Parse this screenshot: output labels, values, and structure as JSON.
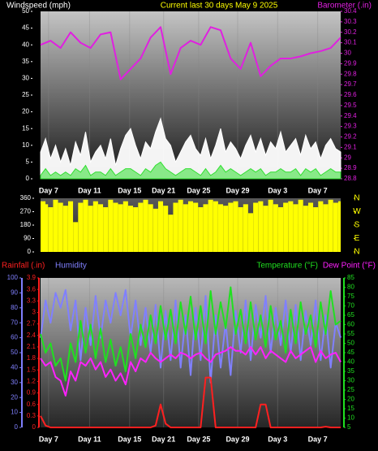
{
  "chart_data": [
    {
      "type": "line",
      "title": "Current last 30 days May 9 2025",
      "ylabel": "Windspeed (mph)",
      "y2label": "Barometer (.in)",
      "xlim": [
        0,
        30
      ],
      "xticks": [
        {
          "value": 0.8,
          "label": "Day 7"
        },
        {
          "value": 4.9,
          "label": "Day 11"
        },
        {
          "value": 8.9,
          "label": "Day 15"
        },
        {
          "value": 12.3,
          "label": "Day 21"
        },
        {
          "value": 15.8,
          "label": "Day 25"
        },
        {
          "value": 19.7,
          "label": "Day 29"
        },
        {
          "value": 23.7,
          "label": "Day 3"
        },
        {
          "value": 27.7,
          "label": "Day 7"
        }
      ],
      "grid": true,
      "ylim": [
        0,
        50
      ],
      "yticks": [
        0,
        5,
        10,
        15,
        20,
        25,
        30,
        35,
        40,
        45,
        50
      ],
      "y2lim": [
        28.8,
        30.4
      ],
      "y2ticks": [
        28.8,
        28.9,
        29,
        29.1,
        29.2,
        29.3,
        29.4,
        29.5,
        29.6,
        29.7,
        29.8,
        29.9,
        30,
        30.1,
        30.2,
        30.3,
        30.4
      ],
      "series": [
        {
          "style": "area",
          "color": "#ffffff",
          "x": [
            0,
            0.5,
            1,
            1.5,
            2,
            2.5,
            3,
            3.5,
            4,
            4.5,
            5,
            5.5,
            6,
            6.5,
            7,
            7.5,
            8,
            8.5,
            9,
            9.5,
            10,
            10.5,
            11,
            11.5,
            12,
            12.5,
            13,
            13.5,
            14,
            14.5,
            15,
            15.5,
            16,
            16.5,
            17,
            17.5,
            18,
            18.5,
            19,
            19.5,
            20,
            20.5,
            21,
            21.5,
            22,
            22.5,
            23,
            23.5,
            24,
            24.5,
            25,
            25.5,
            26,
            26.5,
            27,
            27.5,
            28,
            28.5,
            29,
            29.5,
            30
          ],
          "values": [
            8,
            12,
            6,
            10,
            5,
            9,
            4,
            11,
            7,
            14,
            5,
            8,
            10,
            6,
            12,
            4,
            9,
            13,
            15,
            10,
            6,
            11,
            9,
            14,
            18,
            12,
            10,
            5,
            8,
            11,
            13,
            9,
            7,
            12,
            6,
            10,
            15,
            8,
            11,
            9,
            6,
            10,
            13,
            8,
            12,
            7,
            11,
            9,
            14,
            8,
            10,
            12,
            7,
            13,
            9,
            11,
            6,
            10,
            12,
            9,
            8
          ]
        },
        {
          "style": "area",
          "color": "#30e030",
          "x": [
            0,
            0.5,
            1,
            1.5,
            2,
            2.5,
            3,
            3.5,
            4,
            4.5,
            5,
            5.5,
            6,
            6.5,
            7,
            7.5,
            8,
            8.5,
            9,
            9.5,
            10,
            10.5,
            11,
            11.5,
            12,
            12.5,
            13,
            13.5,
            14,
            14.5,
            15,
            15.5,
            16,
            16.5,
            17,
            17.5,
            18,
            18.5,
            19,
            19.5,
            20,
            20.5,
            21,
            21.5,
            22,
            22.5,
            23,
            23.5,
            24,
            24.5,
            25,
            25.5,
            26,
            26.5,
            27,
            27.5,
            28,
            28.5,
            29,
            29.5,
            30
          ],
          "values": [
            1,
            3,
            1,
            2,
            1,
            2,
            1,
            3,
            2,
            4,
            1,
            2,
            2,
            1,
            3,
            1,
            2,
            3,
            3,
            2,
            1,
            3,
            2,
            4,
            5,
            3,
            2,
            1,
            2,
            3,
            3,
            2,
            1,
            3,
            1,
            2,
            4,
            2,
            3,
            2,
            1,
            2,
            3,
            2,
            3,
            1,
            2,
            2,
            3,
            2,
            2,
            3,
            1,
            3,
            2,
            3,
            1,
            2,
            3,
            2,
            2
          ]
        },
        {
          "style": "line",
          "color": "#e020e0",
          "axis": "y2",
          "x": [
            0,
            1,
            2,
            3,
            4,
            5,
            6,
            7,
            8,
            9,
            10,
            11,
            12,
            13,
            14,
            15,
            16,
            17,
            18,
            19,
            20,
            21,
            22,
            23,
            24,
            25,
            26,
            27,
            28,
            29,
            30
          ],
          "values": [
            30.08,
            30.12,
            30.05,
            30.2,
            30.1,
            30.05,
            30.18,
            30.2,
            29.75,
            29.85,
            29.95,
            30.15,
            30.25,
            29.8,
            30.05,
            30.12,
            30.08,
            30.25,
            30.22,
            29.95,
            29.85,
            30.1,
            29.78,
            29.88,
            29.95,
            29.95,
            29.97,
            30,
            30.02,
            30.05,
            30.15
          ]
        }
      ]
    },
    {
      "type": "bar",
      "xlim": [
        0,
        30
      ],
      "ylim": [
        0,
        360
      ],
      "yticks": [
        0,
        90,
        180,
        270,
        360
      ],
      "y2lim": [
        0,
        360
      ],
      "y2ticks": [
        {
          "value": 360,
          "label": "N"
        },
        {
          "value": 270,
          "label": "W"
        },
        {
          "value": 180,
          "label": "S"
        },
        {
          "value": 90,
          "label": "E"
        },
        {
          "value": 0,
          "label": "N"
        }
      ],
      "series": [
        {
          "color": "#ffff00",
          "x": [
            0,
            0.5,
            1,
            1.5,
            2,
            2.5,
            3,
            3.5,
            4,
            4.5,
            5,
            5.5,
            6,
            6.5,
            7,
            7.5,
            8,
            8.5,
            9,
            9.5,
            10,
            10.5,
            11,
            11.5,
            12,
            12.5,
            13,
            13.5,
            14,
            14.5,
            15,
            15.5,
            16,
            16.5,
            17,
            17.5,
            18,
            18.5,
            19,
            19.5,
            20,
            20.5,
            21,
            21.5,
            22,
            22.5,
            23,
            23.5,
            24,
            24.5,
            25,
            25.5,
            26,
            26.5,
            27,
            27.5,
            28,
            28.5,
            29,
            29.5,
            30
          ],
          "values": [
            340,
            320,
            300,
            350,
            330,
            310,
            340,
            200,
            330,
            350,
            310,
            340,
            320,
            300,
            350,
            330,
            320,
            340,
            310,
            300,
            330,
            350,
            320,
            290,
            340,
            310,
            250,
            330,
            350,
            320,
            340,
            330,
            300,
            320,
            350,
            340,
            320,
            310,
            330,
            340,
            300,
            320,
            260,
            330,
            340,
            310,
            350,
            320,
            300,
            330,
            340,
            320,
            350,
            310,
            330,
            300,
            340,
            320,
            350,
            330,
            340
          ]
        }
      ]
    },
    {
      "type": "line",
      "xlim": [
        0,
        30
      ],
      "xticks": [
        {
          "value": 0.8,
          "label": "Day 7"
        },
        {
          "value": 4.9,
          "label": "Day 11"
        },
        {
          "value": 8.9,
          "label": "Day 15"
        },
        {
          "value": 12.3,
          "label": "Day 21"
        },
        {
          "value": 15.8,
          "label": "Day 25"
        },
        {
          "value": 19.7,
          "label": "Day 29"
        },
        {
          "value": 23.7,
          "label": "Day 3"
        },
        {
          "value": 27.7,
          "label": "Day 7"
        }
      ],
      "grid": true,
      "ylim": [
        0,
        100
      ],
      "yticks": [
        0,
        10,
        20,
        30,
        40,
        50,
        60,
        70,
        80,
        90,
        100
      ],
      "y3lim": [
        0,
        3.9
      ],
      "y3ticks": [
        0,
        0.3,
        0.6,
        0.9,
        1.2,
        1.5,
        1.8,
        2.1,
        2.4,
        2.7,
        3,
        3.3,
        3.6,
        3.9
      ],
      "y2lim": [
        5,
        85
      ],
      "y2ticks": [
        5,
        10,
        15,
        20,
        25,
        30,
        35,
        40,
        45,
        50,
        55,
        60,
        65,
        70,
        75,
        80,
        85
      ],
      "series": [
        {
          "name": "Humidity",
          "color": "#8080ff",
          "style": "line",
          "x": [
            0,
            0.5,
            1,
            1.5,
            2,
            2.5,
            3,
            3.5,
            4,
            4.5,
            5,
            5.5,
            6,
            6.5,
            7,
            7.5,
            8,
            8.5,
            9,
            9.5,
            10,
            10.5,
            11,
            11.5,
            12,
            12.5,
            13,
            13.5,
            14,
            14.5,
            15,
            15.5,
            16,
            16.5,
            17,
            17.5,
            18,
            18.5,
            19,
            19.5,
            20,
            20.5,
            21,
            21.5,
            22,
            22.5,
            23,
            23.5,
            24,
            24.5,
            25,
            25.5,
            26,
            26.5,
            27,
            27.5,
            28,
            28.5,
            29,
            29.5,
            30
          ],
          "values": [
            60,
            85,
            70,
            90,
            80,
            92,
            65,
            85,
            45,
            80,
            55,
            88,
            60,
            85,
            70,
            90,
            75,
            92,
            60,
            85,
            55,
            80,
            50,
            82,
            40,
            78,
            45,
            85,
            40,
            75,
            35,
            80,
            45,
            88,
            30,
            75,
            40,
            70,
            35,
            78,
            50,
            85,
            45,
            82,
            60,
            88,
            50,
            80,
            55,
            85,
            50,
            82,
            45,
            78,
            55,
            85,
            45,
            75,
            40,
            70,
            60
          ]
        },
        {
          "name": "Temperature (°F)",
          "color": "#20e020",
          "style": "line",
          "axis": "y2",
          "x": [
            0,
            0.5,
            1,
            1.5,
            2,
            2.5,
            3,
            3.5,
            4,
            4.5,
            5,
            5.5,
            6,
            6.5,
            7,
            7.5,
            8,
            8.5,
            9,
            9.5,
            10,
            10.5,
            11,
            11.5,
            12,
            12.5,
            13,
            13.5,
            14,
            14.5,
            15,
            15.5,
            16,
            16.5,
            17,
            17.5,
            18,
            18.5,
            19,
            19.5,
            20,
            20.5,
            21,
            21.5,
            22,
            22.5,
            23,
            23.5,
            24,
            24.5,
            25,
            25.5,
            26,
            26.5,
            27,
            27.5,
            28,
            28.5,
            29,
            29.5,
            30
          ],
          "values": [
            55,
            45,
            50,
            38,
            42,
            30,
            50,
            40,
            62,
            45,
            60,
            42,
            58,
            40,
            52,
            38,
            48,
            35,
            55,
            42,
            60,
            48,
            65,
            50,
            70,
            52,
            68,
            50,
            72,
            55,
            75,
            52,
            70,
            50,
            78,
            55,
            72,
            58,
            80,
            55,
            68,
            50,
            72,
            52,
            65,
            48,
            70,
            52,
            62,
            45,
            68,
            50,
            72,
            55,
            65,
            48,
            72,
            55,
            78,
            60,
            62
          ]
        },
        {
          "name": "Dew Point (°F)",
          "color": "#ff20ff",
          "style": "line",
          "axis": "y2",
          "x": [
            0,
            0.5,
            1,
            1.5,
            2,
            2.5,
            3,
            3.5,
            4,
            4.5,
            5,
            5.5,
            6,
            6.5,
            7,
            7.5,
            8,
            8.5,
            9,
            9.5,
            10,
            10.5,
            11,
            11.5,
            12,
            12.5,
            13,
            13.5,
            14,
            14.5,
            15,
            15.5,
            16,
            16.5,
            17,
            17.5,
            18,
            18.5,
            19,
            19.5,
            20,
            20.5,
            21,
            21.5,
            22,
            22.5,
            23,
            23.5,
            24,
            24.5,
            25,
            25.5,
            26,
            26.5,
            27,
            27.5,
            28,
            28.5,
            29,
            29.5,
            30
          ],
          "values": [
            42,
            38,
            40,
            32,
            30,
            22,
            35,
            30,
            40,
            38,
            42,
            36,
            40,
            32,
            36,
            30,
            34,
            28,
            40,
            35,
            42,
            40,
            45,
            42,
            40,
            42,
            44,
            42,
            45,
            44,
            42,
            44,
            45,
            42,
            40,
            44,
            45,
            46,
            48,
            46,
            46,
            44,
            48,
            44,
            48,
            42,
            46,
            44,
            42,
            40,
            46,
            42,
            44,
            46,
            48,
            40,
            46,
            42,
            44,
            45,
            40
          ]
        },
        {
          "name": "Rainfall (.in)",
          "color": "#ff2020",
          "style": "line",
          "axis": "y3",
          "x": [
            0,
            0.5,
            1,
            1.5,
            2,
            2.5,
            3,
            3.5,
            4,
            4.5,
            5,
            5.5,
            6,
            6.5,
            7,
            7.5,
            8,
            8.5,
            9,
            9.5,
            10,
            10.5,
            11,
            11.5,
            12,
            12.5,
            13,
            13.5,
            14,
            14.5,
            15,
            15.5,
            16,
            16.5,
            17,
            17.5,
            18,
            18.5,
            19,
            19.5,
            20,
            20.5,
            21,
            21.5,
            22,
            22.5,
            23,
            23.5,
            24,
            24.5,
            25,
            25.5,
            26,
            26.5,
            27,
            27.5,
            28,
            28.5,
            29,
            29.5,
            30
          ],
          "values": [
            0.3,
            0.05,
            0,
            0,
            0,
            0,
            0,
            0,
            0,
            0,
            0,
            0,
            0,
            0,
            0,
            0,
            0,
            0,
            0,
            0,
            0,
            0,
            0,
            0.05,
            0.6,
            0.1,
            0,
            0,
            0,
            0,
            0,
            0,
            0,
            1.3,
            1.3,
            0,
            0,
            0,
            0,
            0,
            0,
            0,
            0,
            0,
            0.6,
            0.6,
            0,
            0,
            0,
            0,
            0,
            0,
            0,
            0,
            0,
            0,
            0,
            0.02,
            0,
            0,
            0
          ]
        }
      ]
    }
  ]
}
